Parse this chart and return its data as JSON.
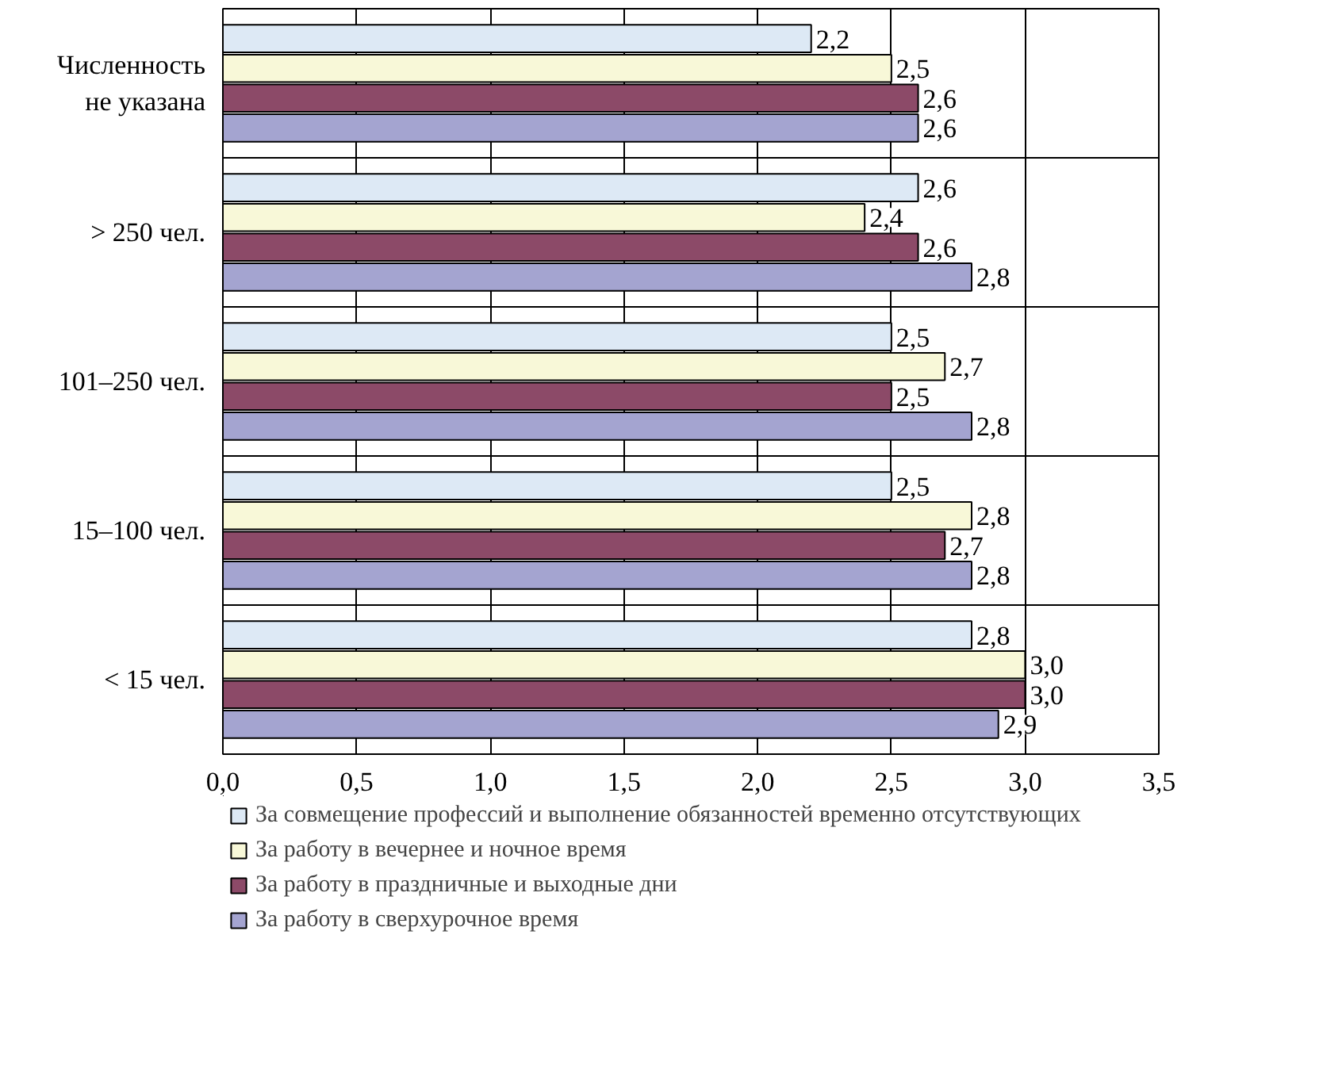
{
  "chart_data": {
    "type": "bar",
    "orientation": "horizontal",
    "categories": [
      "Численность не указана",
      "> 250 чел.",
      "101–250 чел.",
      "15–100 чел.",
      "< 15 чел."
    ],
    "series": [
      {
        "name": "За совмещение профессий и выполнение обязанностей временно отсутствующих",
        "color": "#dde9f5",
        "values": [
          2.2,
          2.6,
          2.5,
          2.5,
          2.8
        ],
        "value_labels": [
          "2,2",
          "2,6",
          "2,5",
          "2,5",
          "2,8"
        ]
      },
      {
        "name": "За работу в вечернее и ночное время",
        "color": "#f8f8d8",
        "values": [
          2.5,
          2.4,
          2.7,
          2.8,
          3.0
        ],
        "value_labels": [
          "2,5",
          "2,4",
          "2,7",
          "2,8",
          "3,0"
        ]
      },
      {
        "name": "За работу в праздничные и выходные дни",
        "color": "#8c4a68",
        "values": [
          2.6,
          2.6,
          2.5,
          2.7,
          3.0
        ],
        "value_labels": [
          "2,6",
          "2,6",
          "2,5",
          "2,7",
          "3,0"
        ]
      },
      {
        "name": "За работу в сверхурочное время",
        "color": "#a4a4d0",
        "values": [
          2.6,
          2.8,
          2.8,
          2.8,
          2.9
        ],
        "value_labels": [
          "2,6",
          "2,8",
          "2,8",
          "2,8",
          "2,9"
        ]
      }
    ],
    "xlim": [
      0,
      3.5
    ],
    "xticks": [
      {
        "value": 0,
        "label": "0,0"
      },
      {
        "value": 0.5,
        "label": "0,5"
      },
      {
        "value": 1,
        "label": "1,0"
      },
      {
        "value": 1.5,
        "label": "1,5"
      },
      {
        "value": 2,
        "label": "2,0"
      },
      {
        "value": 2.5,
        "label": "2,5"
      },
      {
        "value": 3,
        "label": "3,0"
      },
      {
        "value": 3.5,
        "label": "3,5"
      }
    ],
    "grid": true,
    "legend": "bottom"
  }
}
